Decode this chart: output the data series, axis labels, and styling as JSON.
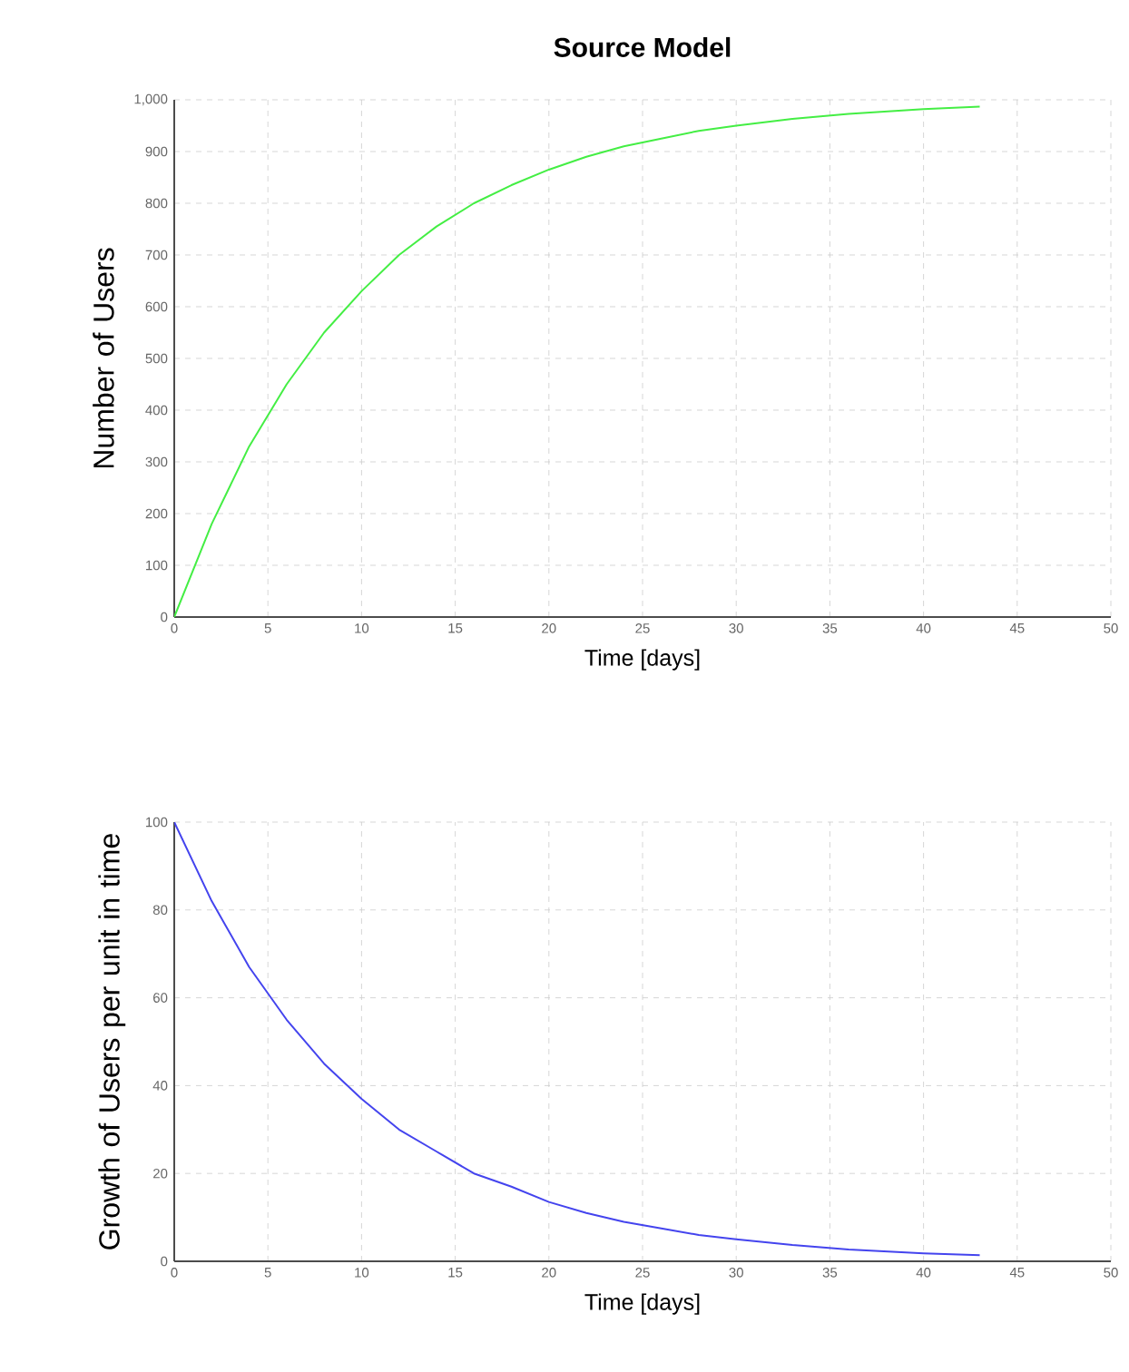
{
  "chart_data": [
    {
      "type": "line",
      "title": "Source Model",
      "xlabel": "Time [days]",
      "ylabel": "Number of Users",
      "x": [
        0,
        2,
        4,
        6,
        8,
        10,
        12,
        14,
        16,
        18,
        20,
        22,
        24,
        26,
        28,
        30,
        33,
        36,
        40,
        43
      ],
      "values": [
        0,
        180,
        330,
        450,
        550,
        630,
        700,
        755,
        800,
        835,
        865,
        890,
        910,
        925,
        940,
        950,
        963,
        973,
        982,
        987
      ],
      "color": "#44ee44",
      "xlim": [
        0,
        50
      ],
      "ylim": [
        0,
        1000
      ],
      "xticks": [
        0,
        5,
        10,
        15,
        20,
        25,
        30,
        35,
        40,
        45,
        50
      ],
      "yticks": [
        0,
        100,
        200,
        300,
        400,
        500,
        600,
        700,
        800,
        900,
        {
          "value": 1000,
          "label": "1,000"
        }
      ],
      "grid": true
    },
    {
      "type": "line",
      "xlabel": "Time [days]",
      "ylabel": "Growth of Users per unit in time",
      "x": [
        0,
        2,
        4,
        6,
        8,
        10,
        12,
        14,
        16,
        18,
        20,
        22,
        24,
        26,
        28,
        30,
        33,
        36,
        40,
        43
      ],
      "values": [
        100,
        82,
        67,
        55,
        45,
        37,
        30,
        25,
        20,
        17,
        13.5,
        11,
        9,
        7.5,
        6,
        5,
        3.7,
        2.7,
        1.8,
        1.4
      ],
      "color": "#4444ee",
      "xlim": [
        0,
        50
      ],
      "ylim": [
        0,
        100
      ],
      "xticks": [
        0,
        5,
        10,
        15,
        20,
        25,
        30,
        35,
        40,
        45,
        50
      ],
      "yticks": [
        0,
        20,
        40,
        60,
        80,
        100
      ],
      "grid": true
    }
  ]
}
